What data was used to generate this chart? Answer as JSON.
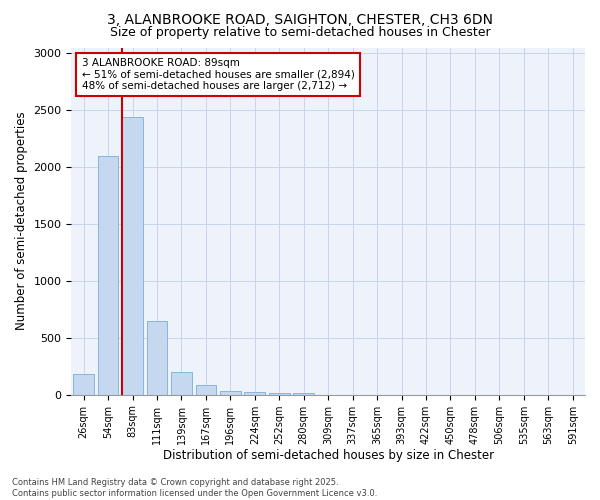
{
  "title_line1": "3, ALANBROOKE ROAD, SAIGHTON, CHESTER, CH3 6DN",
  "title_line2": "Size of property relative to semi-detached houses in Chester",
  "xlabel": "Distribution of semi-detached houses by size in Chester",
  "ylabel": "Number of semi-detached properties",
  "categories": [
    "26sqm",
    "54sqm",
    "83sqm",
    "111sqm",
    "139sqm",
    "167sqm",
    "196sqm",
    "224sqm",
    "252sqm",
    "280sqm",
    "309sqm",
    "337sqm",
    "365sqm",
    "393sqm",
    "422sqm",
    "450sqm",
    "478sqm",
    "506sqm",
    "535sqm",
    "563sqm",
    "591sqm"
  ],
  "values": [
    180,
    2100,
    2440,
    650,
    200,
    85,
    35,
    20,
    15,
    15,
    0,
    0,
    0,
    0,
    0,
    0,
    0,
    0,
    0,
    0,
    0
  ],
  "bar_color": "#c5d8f0",
  "bar_edgecolor": "#7aafd4",
  "vline_x_index": 2,
  "vline_color": "#cc0000",
  "annotation_title": "3 ALANBROOKE ROAD: 89sqm",
  "annotation_line2": "← 51% of semi-detached houses are smaller (2,894)",
  "annotation_line3": "48% of semi-detached houses are larger (2,712) →",
  "annotation_box_color": "#cc0000",
  "ylim": [
    0,
    3050
  ],
  "yticks": [
    0,
    500,
    1000,
    1500,
    2000,
    2500,
    3000
  ],
  "footer_line1": "Contains HM Land Registry data © Crown copyright and database right 2025.",
  "footer_line2": "Contains public sector information licensed under the Open Government Licence v3.0.",
  "bg_color": "#ffffff",
  "plot_bg_color": "#eef2fb",
  "grid_color": "#c8d4ee"
}
